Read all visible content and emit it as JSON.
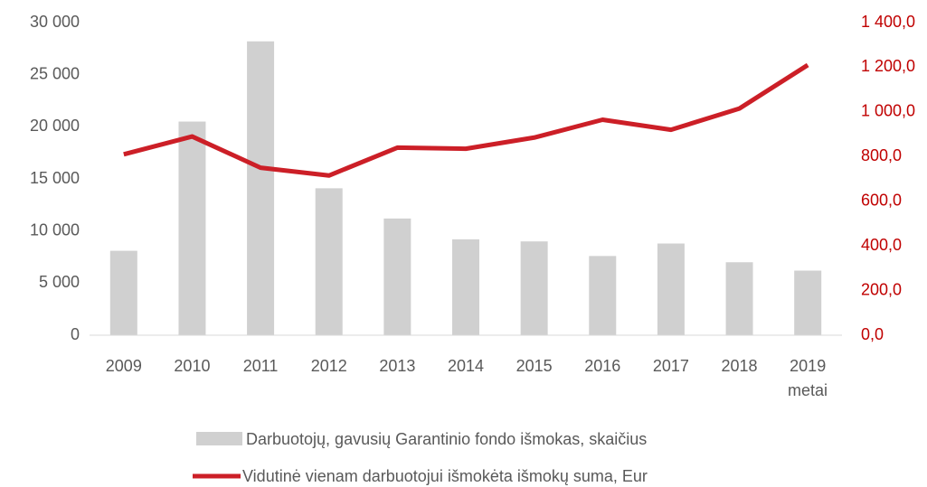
{
  "chart_data": {
    "type": "bar_line",
    "categories": [
      "2009",
      "2010",
      "2011",
      "2012",
      "2013",
      "2014",
      "2015",
      "2016",
      "2017",
      "2018",
      "2019"
    ],
    "x_label": "metai",
    "series": [
      {
        "name": "Darbuotojų, gavusių Garantinio fondo išmokas, skaičius",
        "type": "bar",
        "color": "#d0d0d0",
        "values": [
          8100,
          20500,
          28200,
          14100,
          11200,
          9200,
          9000,
          7600,
          8800,
          7000,
          6200
        ]
      },
      {
        "name": "Vidutinė vienam darbuotojui išmokėta išmokų suma, Eur",
        "type": "line",
        "axis": "y2",
        "color": "#cc1f27",
        "values": [
          810,
          890,
          750,
          715,
          840,
          835,
          885,
          965,
          920,
          1015,
          1210
        ]
      }
    ],
    "ylim": [
      0,
      30000
    ],
    "yticks": [
      0,
      {
        "value": 5000,
        "label": "5 000"
      },
      {
        "value": 10000,
        "label": "10 000"
      },
      {
        "value": 15000,
        "label": "15 000"
      },
      {
        "value": 20000,
        "label": "20 000"
      },
      {
        "value": 25000,
        "label": "25 000"
      },
      {
        "value": 30000,
        "label": "30 000"
      }
    ],
    "y2lim": [
      0,
      1400
    ],
    "y2ticks": [
      {
        "value": 0,
        "label": "0,0"
      },
      {
        "value": 200,
        "label": "200,0"
      },
      {
        "value": 400,
        "label": "400,0"
      },
      {
        "value": 600,
        "label": "600,0"
      },
      {
        "value": 800,
        "label": "800,0"
      },
      {
        "value": 1000,
        "label": "1 000,0"
      },
      {
        "value": 1200,
        "label": "1 200,0"
      },
      {
        "value": 1400,
        "label": "1 400,0"
      }
    ],
    "legend": "bottom"
  }
}
